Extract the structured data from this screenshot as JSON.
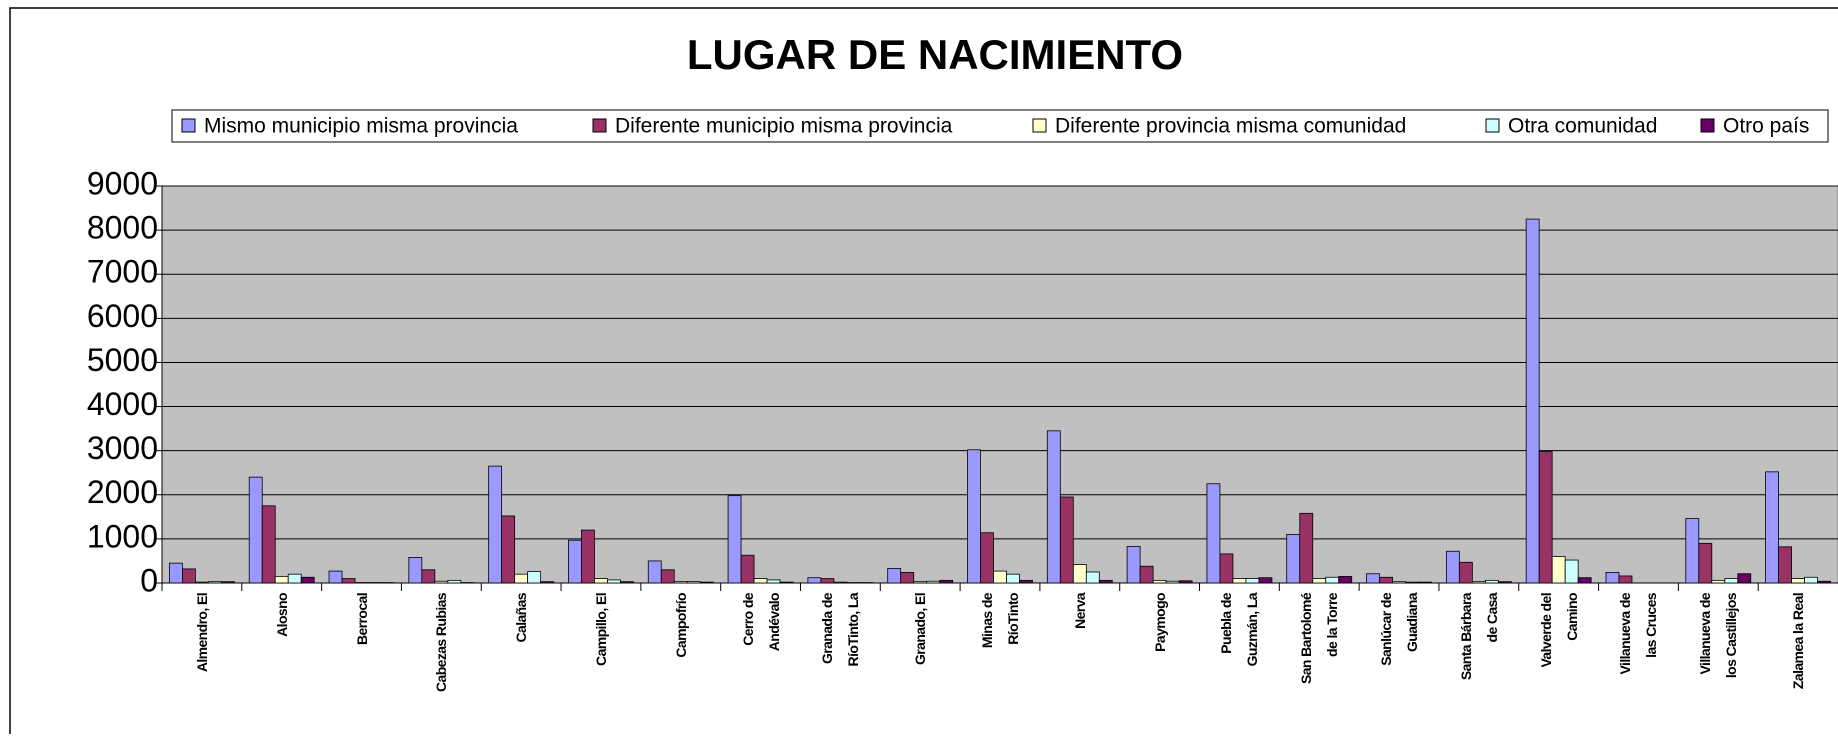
{
  "chart_data": {
    "type": "bar",
    "title": "LUGAR DE NACIMIENTO",
    "categories": [
      "Almendro, El",
      "Alosno",
      "Berrocal",
      "Cabezas Rubias",
      "Calañas",
      "Campillo, El",
      "Campofrío",
      "Cerro de\nAndévalo",
      "Granada de\nRíoTinto, La",
      "Granado, El",
      "Minas de\nRíoTinto",
      "Nerva",
      "Paymogo",
      "Puebla de\nGuzmán, La",
      "San Bartolomé\nde la Torre",
      "Sanlúcar de\nGuadiana",
      "Santa Bárbara\nde Casa",
      "Valverde del\nCamino",
      "Villanueva de\nlas Cruces",
      "Villanueva de\nlos Castillejos",
      "Zalamea la Real"
    ],
    "series": [
      {
        "name": "Mismo municipio misma provincia",
        "color": "#9999ff",
        "values": [
          450,
          2400,
          270,
          580,
          2650,
          970,
          500,
          1980,
          120,
          330,
          3020,
          3450,
          830,
          2250,
          1100,
          210,
          720,
          8250,
          240,
          1460,
          2520
        ]
      },
      {
        "name": "Diferente municipio misma provincia",
        "color": "#993366",
        "values": [
          320,
          1750,
          100,
          300,
          1520,
          1200,
          300,
          630,
          100,
          240,
          1140,
          1950,
          380,
          660,
          1580,
          130,
          470,
          2980,
          160,
          900,
          820
        ]
      },
      {
        "name": "Diferente provincia misma comunidad",
        "color": "#ffffcc",
        "values": [
          20,
          150,
          10,
          40,
          200,
          100,
          30,
          100,
          20,
          30,
          270,
          420,
          60,
          100,
          100,
          30,
          30,
          600,
          0,
          60,
          100
        ]
      },
      {
        "name": "Otra comunidad",
        "color": "#ccffff",
        "values": [
          30,
          200,
          10,
          60,
          260,
          70,
          30,
          70,
          10,
          40,
          200,
          250,
          40,
          100,
          130,
          20,
          60,
          520,
          0,
          100,
          130
        ]
      },
      {
        "name": "Otro país",
        "color": "#660066",
        "values": [
          30,
          130,
          10,
          10,
          30,
          30,
          20,
          20,
          10,
          60,
          60,
          60,
          50,
          120,
          150,
          20,
          30,
          120,
          0,
          210,
          40
        ]
      }
    ],
    "ylim": [
      0,
      9000
    ],
    "yticks": [
      0,
      1000,
      2000,
      3000,
      4000,
      5000,
      6000,
      7000,
      8000,
      9000
    ],
    "grid": true,
    "plot_background": "#c0c0c0",
    "legend": "top"
  }
}
